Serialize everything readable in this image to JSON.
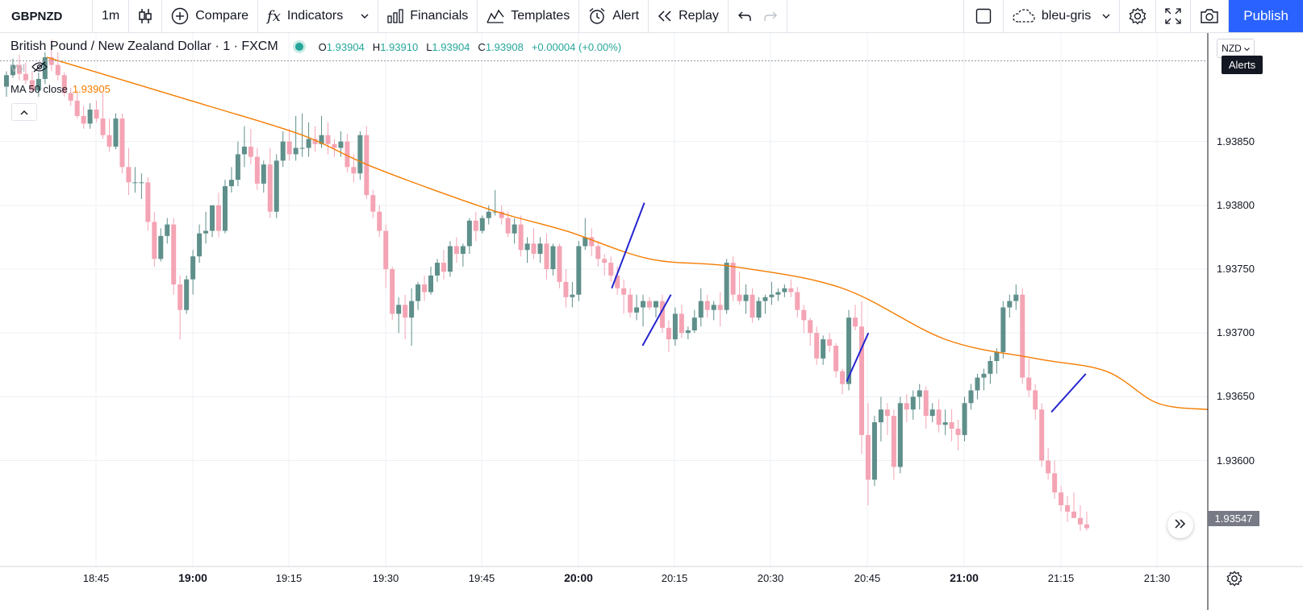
{
  "toolbar": {
    "symbol": "GBPNZD",
    "interval": "1m",
    "compare": "Compare",
    "indicators": "Indicators",
    "financials": "Financials",
    "templates": "Templates",
    "alert": "Alert",
    "replay": "Replay",
    "layout_name": "bleu-gris",
    "publish": "Publish"
  },
  "legend": {
    "title": "British Pound / New Zealand Dollar · 1 · FXCM",
    "open_key": "O",
    "open": "1.93904",
    "high_key": "H",
    "high": "1.93910",
    "low_key": "L",
    "low": "1.93904",
    "close_key": "C",
    "close": "1.93908",
    "change": "+0.00004 (+0.00%)",
    "vol_label": "Vol",
    "ma_label": "MA 50 close",
    "ma_value": "1.93905"
  },
  "price_axis": {
    "currency": "NZD",
    "alerts_tooltip": "Alerts",
    "labels": [
      "1.93850",
      "1.93800",
      "1.93750",
      "1.93700",
      "1.93650",
      "1.93600"
    ],
    "last_price": "1.93547"
  },
  "time_axis": {
    "labels": [
      {
        "text": "18:45",
        "major": false
      },
      {
        "text": "19:00",
        "major": true
      },
      {
        "text": "19:15",
        "major": false
      },
      {
        "text": "19:30",
        "major": false
      },
      {
        "text": "19:45",
        "major": false
      },
      {
        "text": "20:00",
        "major": true
      },
      {
        "text": "20:15",
        "major": false
      },
      {
        "text": "20:30",
        "major": false
      },
      {
        "text": "20:45",
        "major": false
      },
      {
        "text": "21:00",
        "major": true
      },
      {
        "text": "21:15",
        "major": false
      },
      {
        "text": "21:30",
        "major": false
      }
    ]
  },
  "colors": {
    "up": "#26a69a",
    "down": "#ef9a9a",
    "up_candle": "#5f8f8a",
    "down_candle": "#f4a4b4",
    "ma": "#f57c00",
    "drawing": "#2424d0",
    "grid": "#edf0f4",
    "accent": "#2962ff"
  },
  "chart_data": {
    "type": "candlestick",
    "x_label_first": "18:40",
    "interval_minutes": 1,
    "ohlc": [
      [
        1.93893,
        1.93905,
        1.93885,
        1.93902
      ],
      [
        1.93902,
        1.93915,
        1.939,
        1.9391
      ],
      [
        1.9391,
        1.93918,
        1.93898,
        1.93903
      ],
      [
        1.93903,
        1.93912,
        1.93895,
        1.93898
      ],
      [
        1.93898,
        1.93905,
        1.93888,
        1.9389
      ],
      [
        1.9389,
        1.93904,
        1.93885,
        1.93899
      ],
      [
        1.93899,
        1.9392,
        1.93895,
        1.93916
      ],
      [
        1.93916,
        1.9393,
        1.93905,
        1.9391
      ],
      [
        1.9391,
        1.9392,
        1.93898,
        1.93902
      ],
      [
        1.93902,
        1.93904,
        1.93885,
        1.93888
      ],
      [
        1.93888,
        1.93892,
        1.93878,
        1.93882
      ],
      [
        1.93882,
        1.9389,
        1.93868,
        1.9387
      ],
      [
        1.9387,
        1.93878,
        1.9386,
        1.93864
      ],
      [
        1.93864,
        1.9388,
        1.9386,
        1.93875
      ],
      [
        1.93875,
        1.93882,
        1.93865,
        1.93868
      ],
      [
        1.93868,
        1.93888,
        1.93852,
        1.93855
      ],
      [
        1.93855,
        1.93868,
        1.93842,
        1.93846
      ],
      [
        1.93846,
        1.93872,
        1.93844,
        1.93868
      ],
      [
        1.93868,
        1.93872,
        1.93825,
        1.9383
      ],
      [
        1.9383,
        1.93845,
        1.93808,
        1.93818
      ],
      [
        1.93818,
        1.9383,
        1.9381,
        1.93818
      ],
      [
        1.93818,
        1.93825,
        1.93805,
        1.93818
      ],
      [
        1.93818,
        1.93822,
        1.9378,
        1.93787
      ],
      [
        1.93787,
        1.93795,
        1.93752,
        1.93758
      ],
      [
        1.93758,
        1.93782,
        1.93756,
        1.93776
      ],
      [
        1.93776,
        1.9379,
        1.9377,
        1.93785
      ],
      [
        1.93785,
        1.9379,
        1.9373,
        1.93738
      ],
      [
        1.93738,
        1.93745,
        1.93695,
        1.93718
      ],
      [
        1.93718,
        1.93745,
        1.93715,
        1.93742
      ],
      [
        1.93742,
        1.93765,
        1.9373,
        1.9376
      ],
      [
        1.9376,
        1.93785,
        1.93755,
        1.93778
      ],
      [
        1.93778,
        1.93795,
        1.9377,
        1.9378
      ],
      [
        1.9378,
        1.938,
        1.93775,
        1.938
      ],
      [
        1.938,
        1.9381,
        1.93775,
        1.9378
      ],
      [
        1.9378,
        1.9382,
        1.93778,
        1.93815
      ],
      [
        1.93815,
        1.9383,
        1.9381,
        1.9382
      ],
      [
        1.9382,
        1.9385,
        1.93815,
        1.9384
      ],
      [
        1.9384,
        1.93862,
        1.9383,
        1.93846
      ],
      [
        1.93846,
        1.9386,
        1.93832,
        1.93838
      ],
      [
        1.93838,
        1.93845,
        1.93812,
        1.93817
      ],
      [
        1.93817,
        1.93835,
        1.9381,
        1.93832
      ],
      [
        1.93832,
        1.93845,
        1.9379,
        1.93795
      ],
      [
        1.93795,
        1.9384,
        1.9379,
        1.93835
      ],
      [
        1.93835,
        1.93858,
        1.9383,
        1.9385
      ],
      [
        1.9385,
        1.9386,
        1.93835,
        1.9384
      ],
      [
        1.9384,
        1.9387,
        1.93835,
        1.93845
      ],
      [
        1.93845,
        1.93872,
        1.93838,
        1.93845
      ],
      [
        1.93845,
        1.93865,
        1.93838,
        1.93852
      ],
      [
        1.93852,
        1.93862,
        1.93842,
        1.93848
      ],
      [
        1.93848,
        1.9387,
        1.93845,
        1.93855
      ],
      [
        1.93855,
        1.93865,
        1.9384,
        1.93848
      ],
      [
        1.93848,
        1.93852,
        1.93838,
        1.93845
      ],
      [
        1.93845,
        1.93858,
        1.93838,
        1.9385
      ],
      [
        1.9385,
        1.93856,
        1.93826,
        1.9383
      ],
      [
        1.9383,
        1.9384,
        1.93818,
        1.93825
      ],
      [
        1.93825,
        1.93858,
        1.9382,
        1.93855
      ],
      [
        1.93855,
        1.93862,
        1.93805,
        1.93808
      ],
      [
        1.93808,
        1.93812,
        1.9379,
        1.93795
      ],
      [
        1.93795,
        1.938,
        1.93775,
        1.9378
      ],
      [
        1.9378,
        1.93785,
        1.93735,
        1.9375
      ],
      [
        1.9375,
        1.93752,
        1.9371,
        1.93715
      ],
      [
        1.93715,
        1.93728,
        1.937,
        1.93722
      ],
      [
        1.93722,
        1.9373,
        1.93695,
        1.93712
      ],
      [
        1.93712,
        1.93735,
        1.9369,
        1.93725
      ],
      [
        1.93725,
        1.9374,
        1.93718,
        1.93738
      ],
      [
        1.93738,
        1.93745,
        1.93725,
        1.93732
      ],
      [
        1.93732,
        1.93752,
        1.9373,
        1.93745
      ],
      [
        1.93745,
        1.93758,
        1.9374,
        1.93755
      ],
      [
        1.93755,
        1.93765,
        1.93742,
        1.93748
      ],
      [
        1.93748,
        1.93772,
        1.93744,
        1.93768
      ],
      [
        1.93768,
        1.93775,
        1.93755,
        1.93762
      ],
      [
        1.93762,
        1.9377,
        1.93752,
        1.93768
      ],
      [
        1.93768,
        1.9379,
        1.93762,
        1.93788
      ],
      [
        1.93788,
        1.93795,
        1.93772,
        1.9378
      ],
      [
        1.9378,
        1.93792,
        1.93778,
        1.9379
      ],
      [
        1.9379,
        1.938,
        1.93785,
        1.93795
      ],
      [
        1.93795,
        1.93812,
        1.93792,
        1.93795
      ],
      [
        1.93795,
        1.938,
        1.93785,
        1.9379
      ],
      [
        1.9379,
        1.93795,
        1.93775,
        1.93778
      ],
      [
        1.93778,
        1.9379,
        1.9377,
        1.93785
      ],
      [
        1.93785,
        1.93792,
        1.9376,
        1.93765
      ],
      [
        1.93765,
        1.93775,
        1.93755,
        1.9377
      ],
      [
        1.9377,
        1.93782,
        1.93758,
        1.93762
      ],
      [
        1.93762,
        1.93775,
        1.93755,
        1.9377
      ],
      [
        1.9377,
        1.93778,
        1.93742,
        1.9375
      ],
      [
        1.9375,
        1.9377,
        1.93745,
        1.93768
      ],
      [
        1.93768,
        1.9377,
        1.93735,
        1.9374
      ],
      [
        1.9374,
        1.9375,
        1.9372,
        1.93728
      ],
      [
        1.93728,
        1.9374,
        1.9372,
        1.9373
      ],
      [
        1.9373,
        1.93772,
        1.93725,
        1.93768
      ],
      [
        1.93768,
        1.9379,
        1.93765,
        1.93775
      ],
      [
        1.93775,
        1.93782,
        1.9376,
        1.93768
      ],
      [
        1.93768,
        1.93772,
        1.93752,
        1.93758
      ],
      [
        1.93758,
        1.93762,
        1.93745,
        1.93755
      ],
      [
        1.93755,
        1.9376,
        1.9374,
        1.93745
      ],
      [
        1.93745,
        1.93752,
        1.9373,
        1.93735
      ],
      [
        1.93735,
        1.93742,
        1.93715,
        1.9373
      ],
      [
        1.9373,
        1.93735,
        1.93712,
        1.93716
      ],
      [
        1.93716,
        1.9373,
        1.9371,
        1.9372
      ],
      [
        1.9372,
        1.9373,
        1.93705,
        1.93725
      ],
      [
        1.93725,
        1.93728,
        1.93718,
        1.9372
      ],
      [
        1.9372,
        1.93725,
        1.93712,
        1.93725
      ],
      [
        1.93725,
        1.9373,
        1.937,
        1.93704
      ],
      [
        1.93704,
        1.9371,
        1.93685,
        1.93695
      ],
      [
        1.93695,
        1.9372,
        1.9369,
        1.93715
      ],
      [
        1.93715,
        1.93722,
        1.93696,
        1.937
      ],
      [
        1.937,
        1.93705,
        1.93695,
        1.93702
      ],
      [
        1.93702,
        1.93718,
        1.937,
        1.93712
      ],
      [
        1.93712,
        1.93735,
        1.93705,
        1.93725
      ],
      [
        1.93725,
        1.9373,
        1.93712,
        1.93718
      ],
      [
        1.93718,
        1.93725,
        1.9371,
        1.93722
      ],
      [
        1.93722,
        1.93732,
        1.93705,
        1.93718
      ],
      [
        1.93718,
        1.93758,
        1.93715,
        1.93755
      ],
      [
        1.93755,
        1.9376,
        1.93725,
        1.9373
      ],
      [
        1.9373,
        1.93748,
        1.93722,
        1.93725
      ],
      [
        1.93725,
        1.93738,
        1.93715,
        1.9373
      ],
      [
        1.9373,
        1.93735,
        1.93708,
        1.93712
      ],
      [
        1.93712,
        1.93728,
        1.9371,
        1.93725
      ],
      [
        1.93725,
        1.9373,
        1.93715,
        1.93728
      ],
      [
        1.93728,
        1.9374,
        1.93722,
        1.9373
      ],
      [
        1.9373,
        1.93735,
        1.93725,
        1.93732
      ],
      [
        1.93732,
        1.93738,
        1.93728,
        1.93735
      ],
      [
        1.93735,
        1.93742,
        1.93728,
        1.93732
      ],
      [
        1.93732,
        1.93736,
        1.93712,
        1.93718
      ],
      [
        1.93718,
        1.93722,
        1.937,
        1.9371
      ],
      [
        1.9371,
        1.93712,
        1.9369,
        1.937
      ],
      [
        1.937,
        1.93705,
        1.93675,
        1.9368
      ],
      [
        1.9368,
        1.93698,
        1.93675,
        1.93695
      ],
      [
        1.93695,
        1.937,
        1.93685,
        1.9369
      ],
      [
        1.9369,
        1.93692,
        1.93665,
        1.9367
      ],
      [
        1.9367,
        1.93672,
        1.93652,
        1.9366
      ],
      [
        1.9366,
        1.93718,
        1.93655,
        1.93712
      ],
      [
        1.93712,
        1.93722,
        1.93702,
        1.93705
      ],
      [
        1.93705,
        1.93725,
        1.93605,
        1.9362
      ],
      [
        1.9362,
        1.93645,
        1.93565,
        1.93585
      ],
      [
        1.93585,
        1.93635,
        1.9358,
        1.9363
      ],
      [
        1.9363,
        1.9365,
        1.93615,
        1.9364
      ],
      [
        1.9364,
        1.93645,
        1.9362,
        1.93635
      ],
      [
        1.93635,
        1.9364,
        1.93585,
        1.93595
      ],
      [
        1.93595,
        1.9365,
        1.9359,
        1.93645
      ],
      [
        1.93645,
        1.93652,
        1.9363,
        1.9364
      ],
      [
        1.9364,
        1.93655,
        1.93632,
        1.9365
      ],
      [
        1.9365,
        1.9366,
        1.9364,
        1.93655
      ],
      [
        1.93655,
        1.93658,
        1.93625,
        1.93635
      ],
      [
        1.93635,
        1.93645,
        1.9363,
        1.9364
      ],
      [
        1.9364,
        1.93648,
        1.93622,
        1.93628
      ],
      [
        1.93628,
        1.9364,
        1.9362,
        1.9363
      ],
      [
        1.9363,
        1.9364,
        1.93615,
        1.93625
      ],
      [
        1.93625,
        1.93632,
        1.93608,
        1.9362
      ],
      [
        1.9362,
        1.9365,
        1.93615,
        1.93645
      ],
      [
        1.93645,
        1.9366,
        1.9364,
        1.93655
      ],
      [
        1.93655,
        1.93668,
        1.93648,
        1.93665
      ],
      [
        1.93665,
        1.93672,
        1.93655,
        1.93668
      ],
      [
        1.93668,
        1.93682,
        1.9366,
        1.93678
      ],
      [
        1.93678,
        1.93688,
        1.93668,
        1.93685
      ],
      [
        1.93685,
        1.93725,
        1.9368,
        1.9372
      ],
      [
        1.9372,
        1.9373,
        1.93712,
        1.93725
      ],
      [
        1.93725,
        1.93738,
        1.93718,
        1.9373
      ],
      [
        1.9373,
        1.93735,
        1.9366,
        1.93665
      ],
      [
        1.93665,
        1.9368,
        1.9365,
        1.93655
      ],
      [
        1.93655,
        1.9366,
        1.93632,
        1.9364
      ],
      [
        1.9364,
        1.93645,
        1.93595,
        1.936
      ],
      [
        1.936,
        1.9361,
        1.93585,
        1.9359
      ],
      [
        1.9359,
        1.936,
        1.9357,
        1.93575
      ],
      [
        1.93575,
        1.9358,
        1.9356,
        1.93565
      ],
      [
        1.93565,
        1.93572,
        1.93552,
        1.9356
      ],
      [
        1.9356,
        1.93575,
        1.93555,
        1.93555
      ],
      [
        1.93555,
        1.93565,
        1.93545,
        1.9355
      ],
      [
        1.9355,
        1.9356,
        1.93545,
        1.93547
      ]
    ],
    "ma50": [
      [
        0,
        1.93916
      ],
      [
        30,
        1.9388
      ],
      [
        46,
        1.93855
      ],
      [
        57,
        1.9383
      ],
      [
        75,
        1.93797
      ],
      [
        87,
        1.9378
      ],
      [
        100,
        1.93758
      ],
      [
        113,
        1.93752
      ],
      [
        130,
        1.93735
      ],
      [
        146,
        1.93695
      ],
      [
        160,
        1.9368
      ],
      [
        171,
        1.9367
      ],
      [
        179,
        1.93645
      ]
    ],
    "drawings": [
      {
        "from": [
          0.5065,
          1.93735
        ],
        "to": [
          0.5335,
          1.93802
        ]
      },
      {
        "from": [
          0.532,
          1.9369
        ],
        "to": [
          0.5555,
          1.9373
        ]
      },
      {
        "from": [
          0.701,
          1.93662
        ],
        "to": [
          0.719,
          1.937
        ]
      },
      {
        "from": [
          0.8705,
          1.93638
        ],
        "to": [
          0.899,
          1.93668
        ]
      }
    ],
    "ylim": [
      1.93517,
      1.93935
    ]
  }
}
